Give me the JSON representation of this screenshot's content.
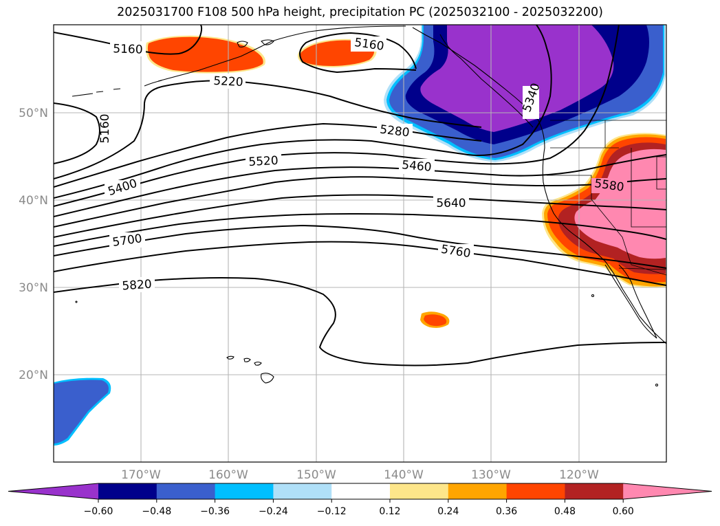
{
  "title": "2025031700 F108 500 hPa height, precipitation PC (2025032100 - 2025032200)",
  "latitude_labels": [
    "50°N",
    "40°N",
    "30°N",
    "20°N"
  ],
  "longitude_labels": [
    "170°W",
    "160°W",
    "150°W",
    "140°W",
    "130°W",
    "120°W"
  ],
  "contour_labels": [
    "5160",
    "5160",
    "5160",
    "5220",
    "5280",
    "5340",
    "5400",
    "5460",
    "5520",
    "5580",
    "5640",
    "5700",
    "5760",
    "5820"
  ],
  "colorbar": {
    "tick_labels": [
      "−0.60",
      "−0.48",
      "−0.36",
      "−0.24",
      "−0.12",
      "0.12",
      "0.24",
      "0.36",
      "0.48",
      "0.60"
    ],
    "colors": [
      "#9932cc",
      "#00008b",
      "#3a5fcd",
      "#00bfff",
      "#b0e0f8",
      "#ffffff",
      "#fde68a",
      "#ffa500",
      "#ff4500",
      "#b22222",
      "#ff88b0"
    ]
  }
}
